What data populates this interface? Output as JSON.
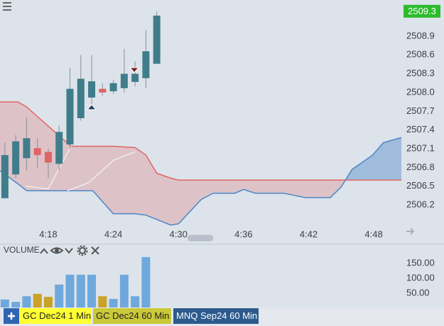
{
  "ui": {
    "last_price": 2509.3,
    "volume_label": "VOLUME",
    "tabs": [
      "GC Dec24 1 Min",
      "GC Dec24 60 Min",
      "MNQ Sep24 60 Min"
    ]
  },
  "chart_data": [
    {
      "type": "candlestick",
      "x": [
        14,
        15,
        16,
        17,
        18,
        19,
        20,
        21,
        22,
        23,
        24,
        25,
        26,
        27,
        28
      ],
      "open": [
        2506.31,
        2506.69,
        2506.95,
        2507.11,
        2507.05,
        2506.86,
        2507.17,
        2507.59,
        2507.92,
        2508.06,
        2508.02,
        2508.07,
        2508.17,
        2508.23,
        2508.46
      ],
      "high": [
        2507.2,
        2507.32,
        2507.6,
        2507.27,
        2507.1,
        2507.47,
        2508.4,
        2508.6,
        2508.6,
        2508.15,
        2508.2,
        2508.7,
        2508.5,
        2509.0,
        2509.3
      ],
      "low": [
        2506.31,
        2506.63,
        2506.75,
        2506.8,
        2506.63,
        2506.75,
        2507.1,
        2507.55,
        2507.75,
        2507.95,
        2507.98,
        2508.0,
        2508.1,
        2508.07,
        2508.46
      ],
      "close": [
        2507.0,
        2507.22,
        2507.27,
        2507.0,
        2506.88,
        2507.37,
        2508.06,
        2508.22,
        2508.18,
        2508.0,
        2508.15,
        2508.3,
        2508.3,
        2508.66,
        2509.23
      ],
      "up_color": "#3f7d8b",
      "down_color": "#e06464",
      "wick_color": "#8a8f96",
      "xlim": [
        13.55,
        50.55
      ],
      "xticks": [
        {
          "value": 18,
          "label": "4:18"
        },
        {
          "value": 24,
          "label": "4:24"
        },
        {
          "value": 30,
          "label": "4:30"
        },
        {
          "value": 36,
          "label": "4:36"
        },
        {
          "value": 42,
          "label": "4:42"
        },
        {
          "value": 48,
          "label": "4:48"
        }
      ],
      "ylim": [
        2505.86,
        2509.48
      ],
      "yticks": [
        2506.2,
        2506.5,
        2506.8,
        2507.1,
        2507.4,
        2507.7,
        {
          "value": 2508,
          "label": "2508.0"
        },
        2508.3,
        2508.6,
        2508.9
      ],
      "cloud": {
        "x": [
          13.55,
          15.2,
          16,
          20.1,
          22.1,
          24,
          26,
          27,
          28,
          29.3,
          30,
          32.1,
          33.2,
          35.2,
          36,
          37.1,
          39.7,
          41.7,
          44,
          45,
          46,
          47.9,
          48.9,
          50.55
        ],
        "span_a": [
          2507.85,
          2507.85,
          2507.77,
          2507.14,
          2507.14,
          2507.14,
          2507.12,
          2507.0,
          2506.71,
          2506.63,
          2506.6,
          2506.6,
          2506.6,
          2506.6,
          2506.6,
          2506.6,
          2506.6,
          2506.6,
          2506.6,
          2506.6,
          2506.6,
          2506.6,
          2506.6,
          2506.6
        ],
        "span_b": [
          2506.75,
          2506.54,
          2506.43,
          2506.43,
          2506.43,
          2506.06,
          2506.06,
          2506.04,
          2505.97,
          2505.88,
          2505.9,
          2506.29,
          2506.39,
          2506.39,
          2506.45,
          2506.39,
          2506.39,
          2506.32,
          2506.32,
          2506.49,
          2506.77,
          2507.0,
          2507.2,
          2507.28
        ],
        "span_a_color": "#e06464",
        "span_b_color": "#4a86c8",
        "bear_fill": "rgba(224,110,110,0.28)",
        "bull_fill": "rgba(74,134,200,0.42)"
      },
      "lagging": {
        "x": [
          15.97,
          18,
          20.1,
          null,
          19.77,
          21.74,
          24.03,
          26.0
        ],
        "values": [
          2506.5,
          2506.46,
          2507.14,
          null,
          2506.43,
          2506.56,
          2506.92,
          2507.05
        ],
        "color": "#f4f4f4"
      }
    },
    {
      "type": "bar",
      "x": [
        14,
        15,
        16,
        17,
        18,
        19,
        20,
        21,
        22,
        23,
        24,
        25,
        26,
        27,
        28
      ],
      "values": [
        29,
        21,
        40,
        48,
        38,
        79,
        112,
        112,
        112,
        40,
        31,
        112,
        40,
        171,
        null
      ],
      "colors": [
        "#6fa8dc",
        "#6fa8dc",
        "#6fa8dc",
        "#c9a227",
        "#c9a227",
        "#6fa8dc",
        "#6fa8dc",
        "#6fa8dc",
        "#6fa8dc",
        "#c9a227",
        "#6fa8dc",
        "#6fa8dc",
        "#6fa8dc",
        "#6fa8dc",
        "#6fa8dc"
      ],
      "xlim": [
        13.55,
        50.55
      ],
      "ylim": [
        0,
        209.5
      ],
      "yticks": [
        {
          "value": 50,
          "label": "50.00"
        },
        {
          "value": 100,
          "label": "100.00"
        },
        {
          "value": 150,
          "label": "150.00"
        }
      ]
    }
  ]
}
